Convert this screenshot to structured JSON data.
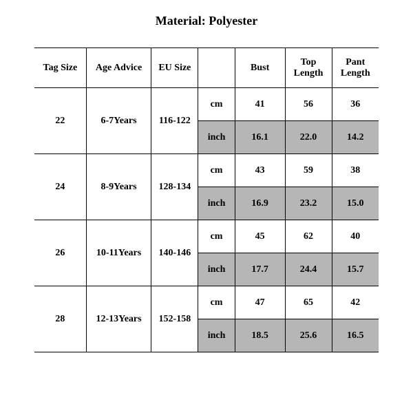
{
  "title": "Material: Polyester",
  "columns": {
    "tag_size": "Tag Size",
    "age_advice": "Age Advice",
    "eu_size": "EU Size",
    "bust": "Bust",
    "top_length": "Top Length",
    "pant_length": "Pant Length"
  },
  "unit_labels": {
    "cm": "cm",
    "inch": "inch"
  },
  "rows": [
    {
      "tag_size": "22",
      "age_advice": "6-7Years",
      "eu_size": "116-122",
      "cm": {
        "bust": "41",
        "top_length": "56",
        "pant_length": "36"
      },
      "inch": {
        "bust": "16.1",
        "top_length": "22.0",
        "pant_length": "14.2"
      }
    },
    {
      "tag_size": "24",
      "age_advice": "8-9Years",
      "eu_size": "128-134",
      "cm": {
        "bust": "43",
        "top_length": "59",
        "pant_length": "38"
      },
      "inch": {
        "bust": "16.9",
        "top_length": "23.2",
        "pant_length": "15.0"
      }
    },
    {
      "tag_size": "26",
      "age_advice": "10-11Years",
      "eu_size": "140-146",
      "cm": {
        "bust": "45",
        "top_length": "62",
        "pant_length": "40"
      },
      "inch": {
        "bust": "17.7",
        "top_length": "24.4",
        "pant_length": "15.7"
      }
    },
    {
      "tag_size": "28",
      "age_advice": "12-13Years",
      "eu_size": "152-158",
      "cm": {
        "bust": "47",
        "top_length": "65",
        "pant_length": "42"
      },
      "inch": {
        "bust": "18.5",
        "top_length": "25.6",
        "pant_length": "16.5"
      }
    }
  ],
  "style": {
    "background_color": "#ffffff",
    "text_color": "#000000",
    "border_color": "#000000",
    "shaded_color": "#b6b6b6",
    "font_family": "Times New Roman",
    "title_fontsize_pt": 14,
    "cell_fontsize_pt": 11,
    "table_type": "table"
  }
}
